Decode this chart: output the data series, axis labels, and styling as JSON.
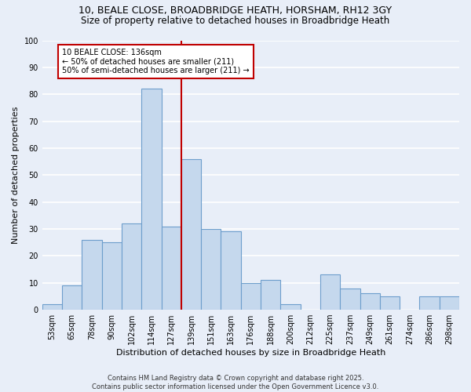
{
  "title1": "10, BEALE CLOSE, BROADBRIDGE HEATH, HORSHAM, RH12 3GY",
  "title2": "Size of property relative to detached houses in Broadbridge Heath",
  "xlabel": "Distribution of detached houses by size in Broadbridge Heath",
  "ylabel": "Number of detached properties",
  "footnote": "Contains HM Land Registry data © Crown copyright and database right 2025.\nContains public sector information licensed under the Open Government Licence v3.0.",
  "categories": [
    "53sqm",
    "65sqm",
    "78sqm",
    "90sqm",
    "102sqm",
    "114sqm",
    "127sqm",
    "139sqm",
    "151sqm",
    "163sqm",
    "176sqm",
    "188sqm",
    "200sqm",
    "212sqm",
    "225sqm",
    "237sqm",
    "249sqm",
    "261sqm",
    "274sqm",
    "286sqm",
    "298sqm"
  ],
  "values": [
    2,
    9,
    26,
    25,
    32,
    82,
    31,
    56,
    30,
    29,
    10,
    11,
    2,
    0,
    13,
    8,
    6,
    5,
    0,
    5,
    5
  ],
  "bar_color": "#c5d8ed",
  "bar_edge_color": "#6d9ecc",
  "vline_color": "#c00000",
  "vline_x": 6.5,
  "annotation_text": "10 BEALE CLOSE: 136sqm\n← 50% of detached houses are smaller (211)\n50% of semi-detached houses are larger (211) →",
  "annotation_box_color": "white",
  "annotation_box_edge_color": "#c00000",
  "ylim": [
    0,
    100
  ],
  "yticks": [
    0,
    10,
    20,
    30,
    40,
    50,
    60,
    70,
    80,
    90,
    100
  ],
  "background_color": "#e8eef8",
  "grid_color": "white",
  "title_fontsize": 9,
  "subtitle_fontsize": 8.5,
  "label_fontsize": 8,
  "tick_fontsize": 7,
  "annot_fontsize": 7,
  "footnote_fontsize": 6
}
